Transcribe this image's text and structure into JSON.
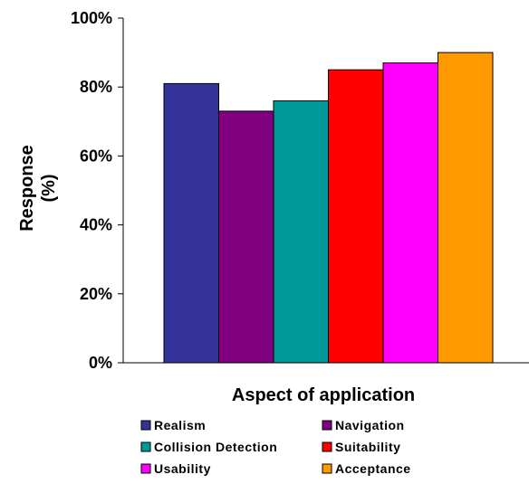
{
  "chart_data": {
    "type": "bar",
    "title": "",
    "xlabel": "Aspect of application",
    "ylabel_lines": [
      "Response",
      "(%)"
    ],
    "ylim": [
      0,
      100
    ],
    "yticks": [
      0,
      20,
      40,
      60,
      80,
      100
    ],
    "ytick_labels": [
      "0%",
      "20%",
      "40%",
      "60%",
      "80%",
      "100%"
    ],
    "grid": false,
    "legend_position": "bottom",
    "series": [
      {
        "name": "Realism",
        "value": 81,
        "color": "#333399"
      },
      {
        "name": "Navigation",
        "value": 73,
        "color": "#800080"
      },
      {
        "name": "Collision Detection",
        "value": 76,
        "color": "#009999"
      },
      {
        "name": "Suitability",
        "value": 85,
        "color": "#ff0000"
      },
      {
        "name": "Usability",
        "value": 87,
        "color": "#ff00ff"
      },
      {
        "name": "Acceptance",
        "value": 90,
        "color": "#ff9900"
      }
    ]
  }
}
